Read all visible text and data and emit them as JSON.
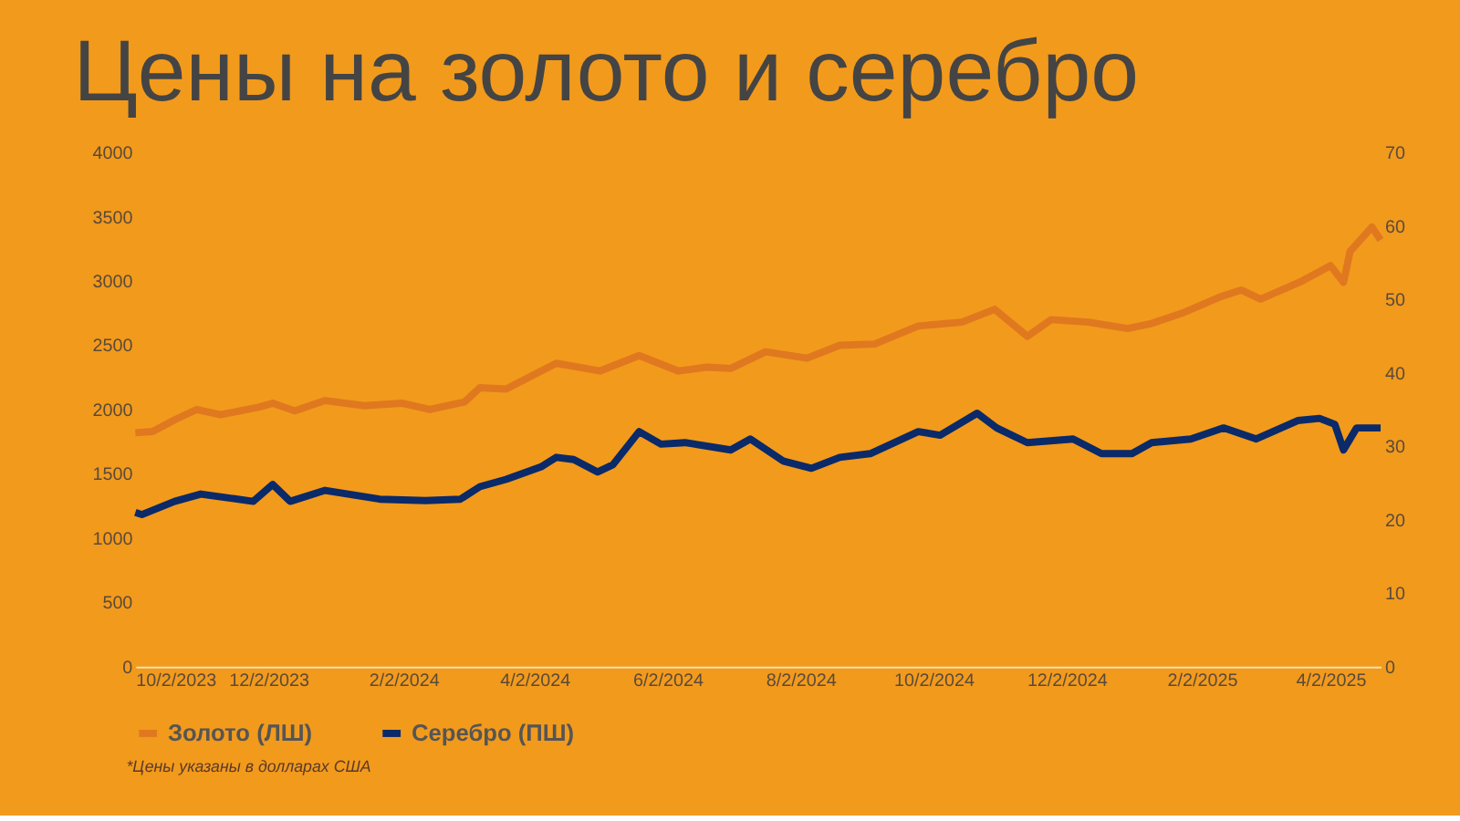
{
  "chart_data": {
    "type": "line",
    "title": "Цены на золото и серебро",
    "xlim": [
      "2023-10-02",
      "2025-04-25"
    ],
    "xticks": [
      {
        "value": "2023-10-02",
        "label": "10/2/2023"
      },
      {
        "value": "2023-12-02",
        "label": "12/2/2023"
      },
      {
        "value": "2024-02-02",
        "label": "2/2/2024"
      },
      {
        "value": "2024-04-02",
        "label": "4/2/2024"
      },
      {
        "value": "2024-06-02",
        "label": "6/2/2024"
      },
      {
        "value": "2024-08-02",
        "label": "8/2/2024"
      },
      {
        "value": "2024-10-02",
        "label": "10/2/2024"
      },
      {
        "value": "2024-12-02",
        "label": "12/2/2024"
      },
      {
        "value": "2025-02-02",
        "label": "2/2/2025"
      },
      {
        "value": "2025-04-02",
        "label": "4/2/2025"
      }
    ],
    "ylim": [
      0,
      4000
    ],
    "yticks": [
      0,
      500,
      1000,
      1500,
      2000,
      2500,
      3000,
      3500,
      4000
    ],
    "y2lim": [
      0,
      70
    ],
    "y2ticks": [
      0,
      10,
      20,
      30,
      40,
      50,
      60,
      70
    ],
    "grid": false,
    "legend": "bottom",
    "marker": "none",
    "line_style": "solid",
    "series": [
      {
        "name": "Золото (ЛШ)",
        "color": "#e07820",
        "x": [
          "2023-10-02",
          "2023-10-10",
          "2023-10-20",
          "2023-10-30",
          "2023-11-10",
          "2023-11-28",
          "2023-12-04",
          "2023-12-14",
          "2023-12-28",
          "2024-01-15",
          "2024-02-01",
          "2024-02-14",
          "2024-03-01",
          "2024-03-08",
          "2024-03-20",
          "2024-04-05",
          "2024-04-12",
          "2024-04-22",
          "2024-05-02",
          "2024-05-20",
          "2024-06-07",
          "2024-06-20",
          "2024-07-01",
          "2024-07-17",
          "2024-08-05",
          "2024-08-20",
          "2024-09-05",
          "2024-09-25",
          "2024-10-15",
          "2024-10-30",
          "2024-11-14",
          "2024-11-25",
          "2024-12-12",
          "2024-12-30",
          "2025-01-10",
          "2025-01-24",
          "2025-02-11",
          "2025-02-20",
          "2025-03-01",
          "2025-03-20",
          "2025-04-02",
          "2025-04-08",
          "2025-04-11",
          "2025-04-21",
          "2025-04-25"
        ],
        "values": [
          1820,
          1830,
          1920,
          2000,
          1960,
          2020,
          2050,
          1990,
          2070,
          2030,
          2050,
          2000,
          2060,
          2170,
          2160,
          2300,
          2360,
          2330,
          2300,
          2420,
          2300,
          2330,
          2320,
          2450,
          2400,
          2500,
          2510,
          2650,
          2680,
          2780,
          2570,
          2700,
          2680,
          2630,
          2670,
          2750,
          2880,
          2930,
          2860,
          3000,
          3120,
          2990,
          3230,
          3420,
          3320
        ]
      },
      {
        "name": "Серебро (ПШ)",
        "color": "#0a2a6a",
        "axis": "y2",
        "x": [
          "2023-10-02",
          "2023-10-05",
          "2023-10-20",
          "2023-11-01",
          "2023-11-13",
          "2023-11-25",
          "2023-12-04",
          "2023-12-12",
          "2023-12-28",
          "2024-01-22",
          "2024-02-12",
          "2024-02-28",
          "2024-03-08",
          "2024-03-20",
          "2024-04-05",
          "2024-04-12",
          "2024-04-20",
          "2024-05-01",
          "2024-05-08",
          "2024-05-20",
          "2024-05-30",
          "2024-06-10",
          "2024-07-01",
          "2024-07-10",
          "2024-07-25",
          "2024-08-07",
          "2024-08-20",
          "2024-09-03",
          "2024-09-25",
          "2024-10-05",
          "2024-10-22",
          "2024-10-31",
          "2024-11-14",
          "2024-12-05",
          "2024-12-18",
          "2025-01-01",
          "2025-01-10",
          "2025-01-28",
          "2025-02-12",
          "2025-02-27",
          "2025-03-18",
          "2025-03-28",
          "2025-04-04",
          "2025-04-08",
          "2025-04-14",
          "2025-04-25"
        ],
        "values": [
          21,
          20.7,
          22.5,
          23.5,
          23,
          22.5,
          24.8,
          22.5,
          24,
          22.8,
          22.6,
          22.8,
          24.5,
          25.5,
          27.2,
          28.5,
          28.2,
          26.5,
          27.5,
          32,
          30.3,
          30.5,
          29.5,
          31,
          28,
          27,
          28.5,
          29,
          32,
          31.5,
          34.5,
          32.5,
          30.5,
          31,
          29,
          29,
          30.5,
          31,
          32.5,
          31,
          33.5,
          33.8,
          33,
          29.5,
          32.5,
          32.5
        ]
      }
    ],
    "annotations": [
      "*Цены указаны в долларах США"
    ]
  }
}
